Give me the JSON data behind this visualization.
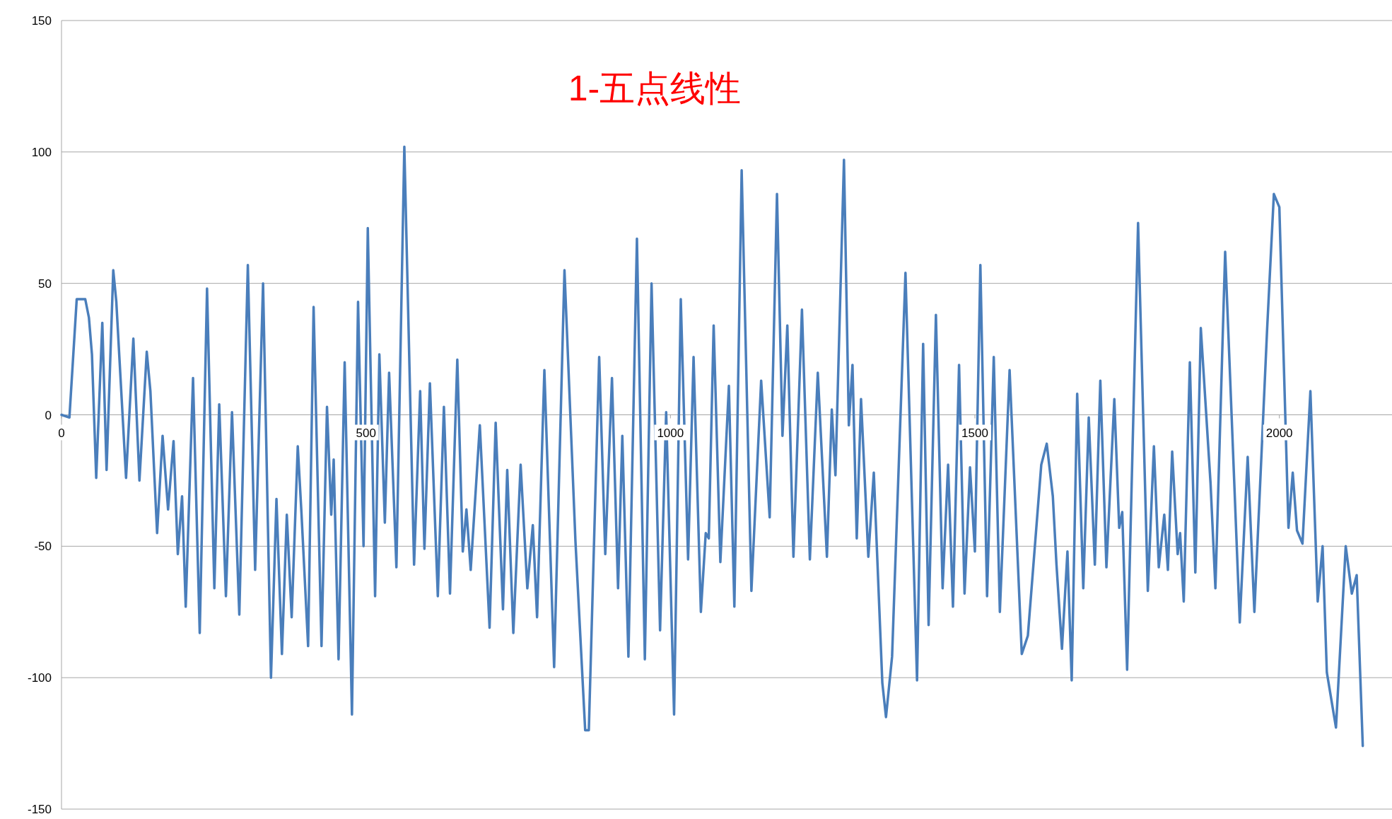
{
  "chart_data": {
    "type": "line",
    "title": "1-五点线性",
    "grid": "y",
    "marker": "none",
    "line_style": "solid",
    "xlim": [
      0,
      2185
    ],
    "xticks": [
      0,
      500,
      1000,
      1500,
      2000
    ],
    "ylim": [
      -150,
      150
    ],
    "yticks": [
      -150,
      -100,
      -50,
      0,
      50,
      100,
      150
    ],
    "series": [
      {
        "color": "#4a7ebb",
        "x": [
          0,
          13,
          25,
          39,
          45,
          50,
          57,
          67,
          74,
          85,
          90,
          106,
          118,
          128,
          140,
          146,
          157,
          166,
          175,
          184,
          191,
          198,
          204,
          216,
          227,
          239,
          251,
          259,
          270,
          280,
          292,
          306,
          318,
          331,
          344,
          353,
          362,
          370,
          378,
          388,
          394,
          405,
          414,
          427,
          436,
          443,
          447,
          455,
          465,
          477,
          487,
          496,
          503,
          515,
          522,
          531,
          538,
          550,
          563,
          579,
          589,
          596,
          605,
          618,
          628,
          638,
          650,
          659,
          665,
          672,
          687,
          703,
          713,
          725,
          732,
          742,
          754,
          765,
          774,
          781,
          793,
          809,
          826,
          844,
          860,
          866,
          883,
          893,
          904,
          914,
          921,
          931,
          945,
          958,
          969,
          983,
          993,
          1006,
          1017,
          1029,
          1038,
          1050,
          1058,
          1063,
          1071,
          1082,
          1096,
          1105,
          1117,
          1133,
          1149,
          1163,
          1175,
          1184,
          1192,
          1202,
          1216,
          1229,
          1242,
          1257,
          1265,
          1271,
          1285,
          1293,
          1299,
          1306,
          1313,
          1325,
          1334,
          1348,
          1354,
          1364,
          1386,
          1405,
          1415,
          1424,
          1436,
          1447,
          1456,
          1464,
          1474,
          1483,
          1492,
          1500,
          1509,
          1520,
          1531,
          1541,
          1557,
          1577,
          1587,
          1609,
          1618,
          1628,
          1634,
          1643,
          1652,
          1659,
          1668,
          1678,
          1687,
          1697,
          1706,
          1716,
          1729,
          1737,
          1742,
          1750,
          1768,
          1784,
          1794,
          1802,
          1811,
          1817,
          1824,
          1833,
          1837,
          1843,
          1853,
          1862,
          1871,
          1887,
          1895,
          1911,
          1935,
          1948,
          1959,
          1980,
          1991,
          2000,
          2015,
          2022,
          2029,
          2038,
          2051,
          2063,
          2071,
          2078,
          2093,
          2109,
          2119,
          2127,
          2137
        ],
        "values": [
          0,
          -1,
          44,
          44,
          37,
          23,
          -24,
          35,
          -21,
          55,
          43,
          -24,
          29,
          -25,
          24,
          9,
          -45,
          -8,
          -36,
          -10,
          -53,
          -31,
          -73,
          14,
          -83,
          48,
          -66,
          4,
          -69,
          1,
          -76,
          57,
          -59,
          50,
          -100,
          -32,
          -91,
          -38,
          -77,
          -12,
          -37,
          -88,
          41,
          -88,
          3,
          -38,
          -17,
          -93,
          20,
          -114,
          43,
          -50,
          71,
          -69,
          23,
          -41,
          16,
          -58,
          102,
          -57,
          9,
          -51,
          12,
          -69,
          3,
          -68,
          21,
          -52,
          -36,
          -59,
          -4,
          -81,
          -3,
          -74,
          -21,
          -83,
          -19,
          -66,
          -42,
          -77,
          17,
          -96,
          55,
          -48,
          -120,
          -120,
          22,
          -53,
          14,
          -66,
          -8,
          -92,
          67,
          -93,
          50,
          -82,
          1,
          -114,
          44,
          -55,
          22,
          -75,
          -45,
          -47,
          34,
          -56,
          11,
          -73,
          93,
          -67,
          13,
          -39,
          84,
          -8,
          34,
          -54,
          40,
          -55,
          16,
          -54,
          2,
          -23,
          97,
          -4,
          19,
          -47,
          6,
          -54,
          -22,
          -102,
          -115,
          -92,
          54,
          -101,
          27,
          -80,
          38,
          -66,
          -19,
          -73,
          19,
          -68,
          -20,
          -52,
          57,
          -69,
          22,
          -75,
          17,
          -91,
          -84,
          -19,
          -11,
          -31,
          -57,
          -89,
          -52,
          -101,
          8,
          -66,
          -1,
          -57,
          13,
          -58,
          6,
          -43,
          -37,
          -97,
          73,
          -67,
          -12,
          -58,
          -38,
          -59,
          -14,
          -53,
          -45,
          -71,
          20,
          -60,
          33,
          -26,
          -66,
          62,
          -79,
          -16,
          -75,
          33,
          84,
          79,
          -43,
          -22,
          -44,
          -49,
          9,
          -71,
          -50,
          -98,
          -119,
          -50,
          -68,
          -61,
          -126
        ]
      }
    ]
  }
}
